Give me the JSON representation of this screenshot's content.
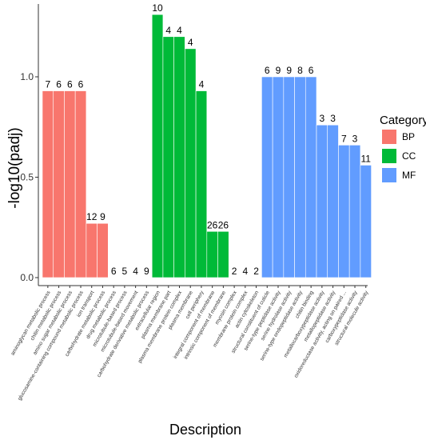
{
  "chart_data": {
    "type": "bar",
    "xlabel": "Description",
    "ylabel": "-log10(padj)",
    "ylim": [
      0,
      1.35
    ],
    "yticks": [
      0.0,
      0.5,
      1.0
    ],
    "ytick_labels": [
      "0.0",
      "0.5",
      "1.0"
    ],
    "legend": {
      "title": "Category",
      "placement": "right",
      "entries": [
        {
          "label": "BP",
          "color": "#F8766D"
        },
        {
          "label": "CC",
          "color": "#00BA38"
        },
        {
          "label": "MF",
          "color": "#619CFF"
        }
      ]
    },
    "categories": [
      {
        "label": "aminoglycan metabolic process",
        "category": "BP",
        "value": 0.93,
        "count": "7"
      },
      {
        "label": "chitin metabolic process",
        "category": "BP",
        "value": 0.93,
        "count": "6"
      },
      {
        "label": "amino sugar metabolic process",
        "category": "BP",
        "value": 0.93,
        "count": "6"
      },
      {
        "label": "glucosamine-containing compound metabolic process",
        "category": "BP",
        "value": 0.93,
        "count": "6"
      },
      {
        "label": "ion transport",
        "category": "BP",
        "value": 0.27,
        "count": "12"
      },
      {
        "label": "carbohydrate metabolic process",
        "category": "BP",
        "value": 0.27,
        "count": "9"
      },
      {
        "label": "drug metabolic process",
        "category": "BP",
        "value": 0.0,
        "count": "6"
      },
      {
        "label": "microtubule-based process",
        "category": "BP",
        "value": 0.0,
        "count": "5"
      },
      {
        "label": "microtubule-based movement",
        "category": "BP",
        "value": 0.0,
        "count": "4"
      },
      {
        "label": "carbohydrate derivative metabolic process",
        "category": "BP",
        "value": 0.0,
        "count": "9"
      },
      {
        "label": "extracellular region",
        "category": "CC",
        "value": 1.31,
        "count": "10"
      },
      {
        "label": "plasma membrane part",
        "category": "CC",
        "value": 1.2,
        "count": "4"
      },
      {
        "label": "plasma membrane protein complex",
        "category": "CC",
        "value": 1.2,
        "count": "4"
      },
      {
        "label": "plasma membrane",
        "category": "CC",
        "value": 1.14,
        "count": "4"
      },
      {
        "label": "cell periphery",
        "category": "CC",
        "value": 0.93,
        "count": "4"
      },
      {
        "label": "integral component of membrane",
        "category": "CC",
        "value": 0.23,
        "count": "26"
      },
      {
        "label": "intrinsic component of membrane",
        "category": "CC",
        "value": 0.23,
        "count": "26"
      },
      {
        "label": "myosin complex",
        "category": "CC",
        "value": 0.0,
        "count": "2"
      },
      {
        "label": "membrane protein complex",
        "category": "CC",
        "value": 0.0,
        "count": "4"
      },
      {
        "label": "actin cytoskeleton",
        "category": "CC",
        "value": 0.0,
        "count": "2"
      },
      {
        "label": "structural constituent of cuticle",
        "category": "MF",
        "value": 1.0,
        "count": "6"
      },
      {
        "label": "serine-type peptidase activity",
        "category": "MF",
        "value": 1.0,
        "count": "9"
      },
      {
        "label": "serine hydrolase activity",
        "category": "MF",
        "value": 1.0,
        "count": "9"
      },
      {
        "label": "serine-type endopeptidase activity",
        "category": "MF",
        "value": 1.0,
        "count": "8"
      },
      {
        "label": "chitin binding",
        "category": "MF",
        "value": 1.0,
        "count": "6"
      },
      {
        "label": "metallocarboxypeptidase activity",
        "category": "MF",
        "value": 0.76,
        "count": "3"
      },
      {
        "label": "metallopeptidase activity",
        "category": "MF",
        "value": 0.76,
        "count": "3"
      },
      {
        "label": "oxidoreductase activity, acting on paired ...",
        "category": "MF",
        "value": 0.66,
        "count": "7"
      },
      {
        "label": "carboxypeptidase activity",
        "category": "MF",
        "value": 0.66,
        "count": "3"
      },
      {
        "label": "structural molecule activity",
        "category": "MF",
        "value": 0.56,
        "count": "11"
      }
    ]
  }
}
